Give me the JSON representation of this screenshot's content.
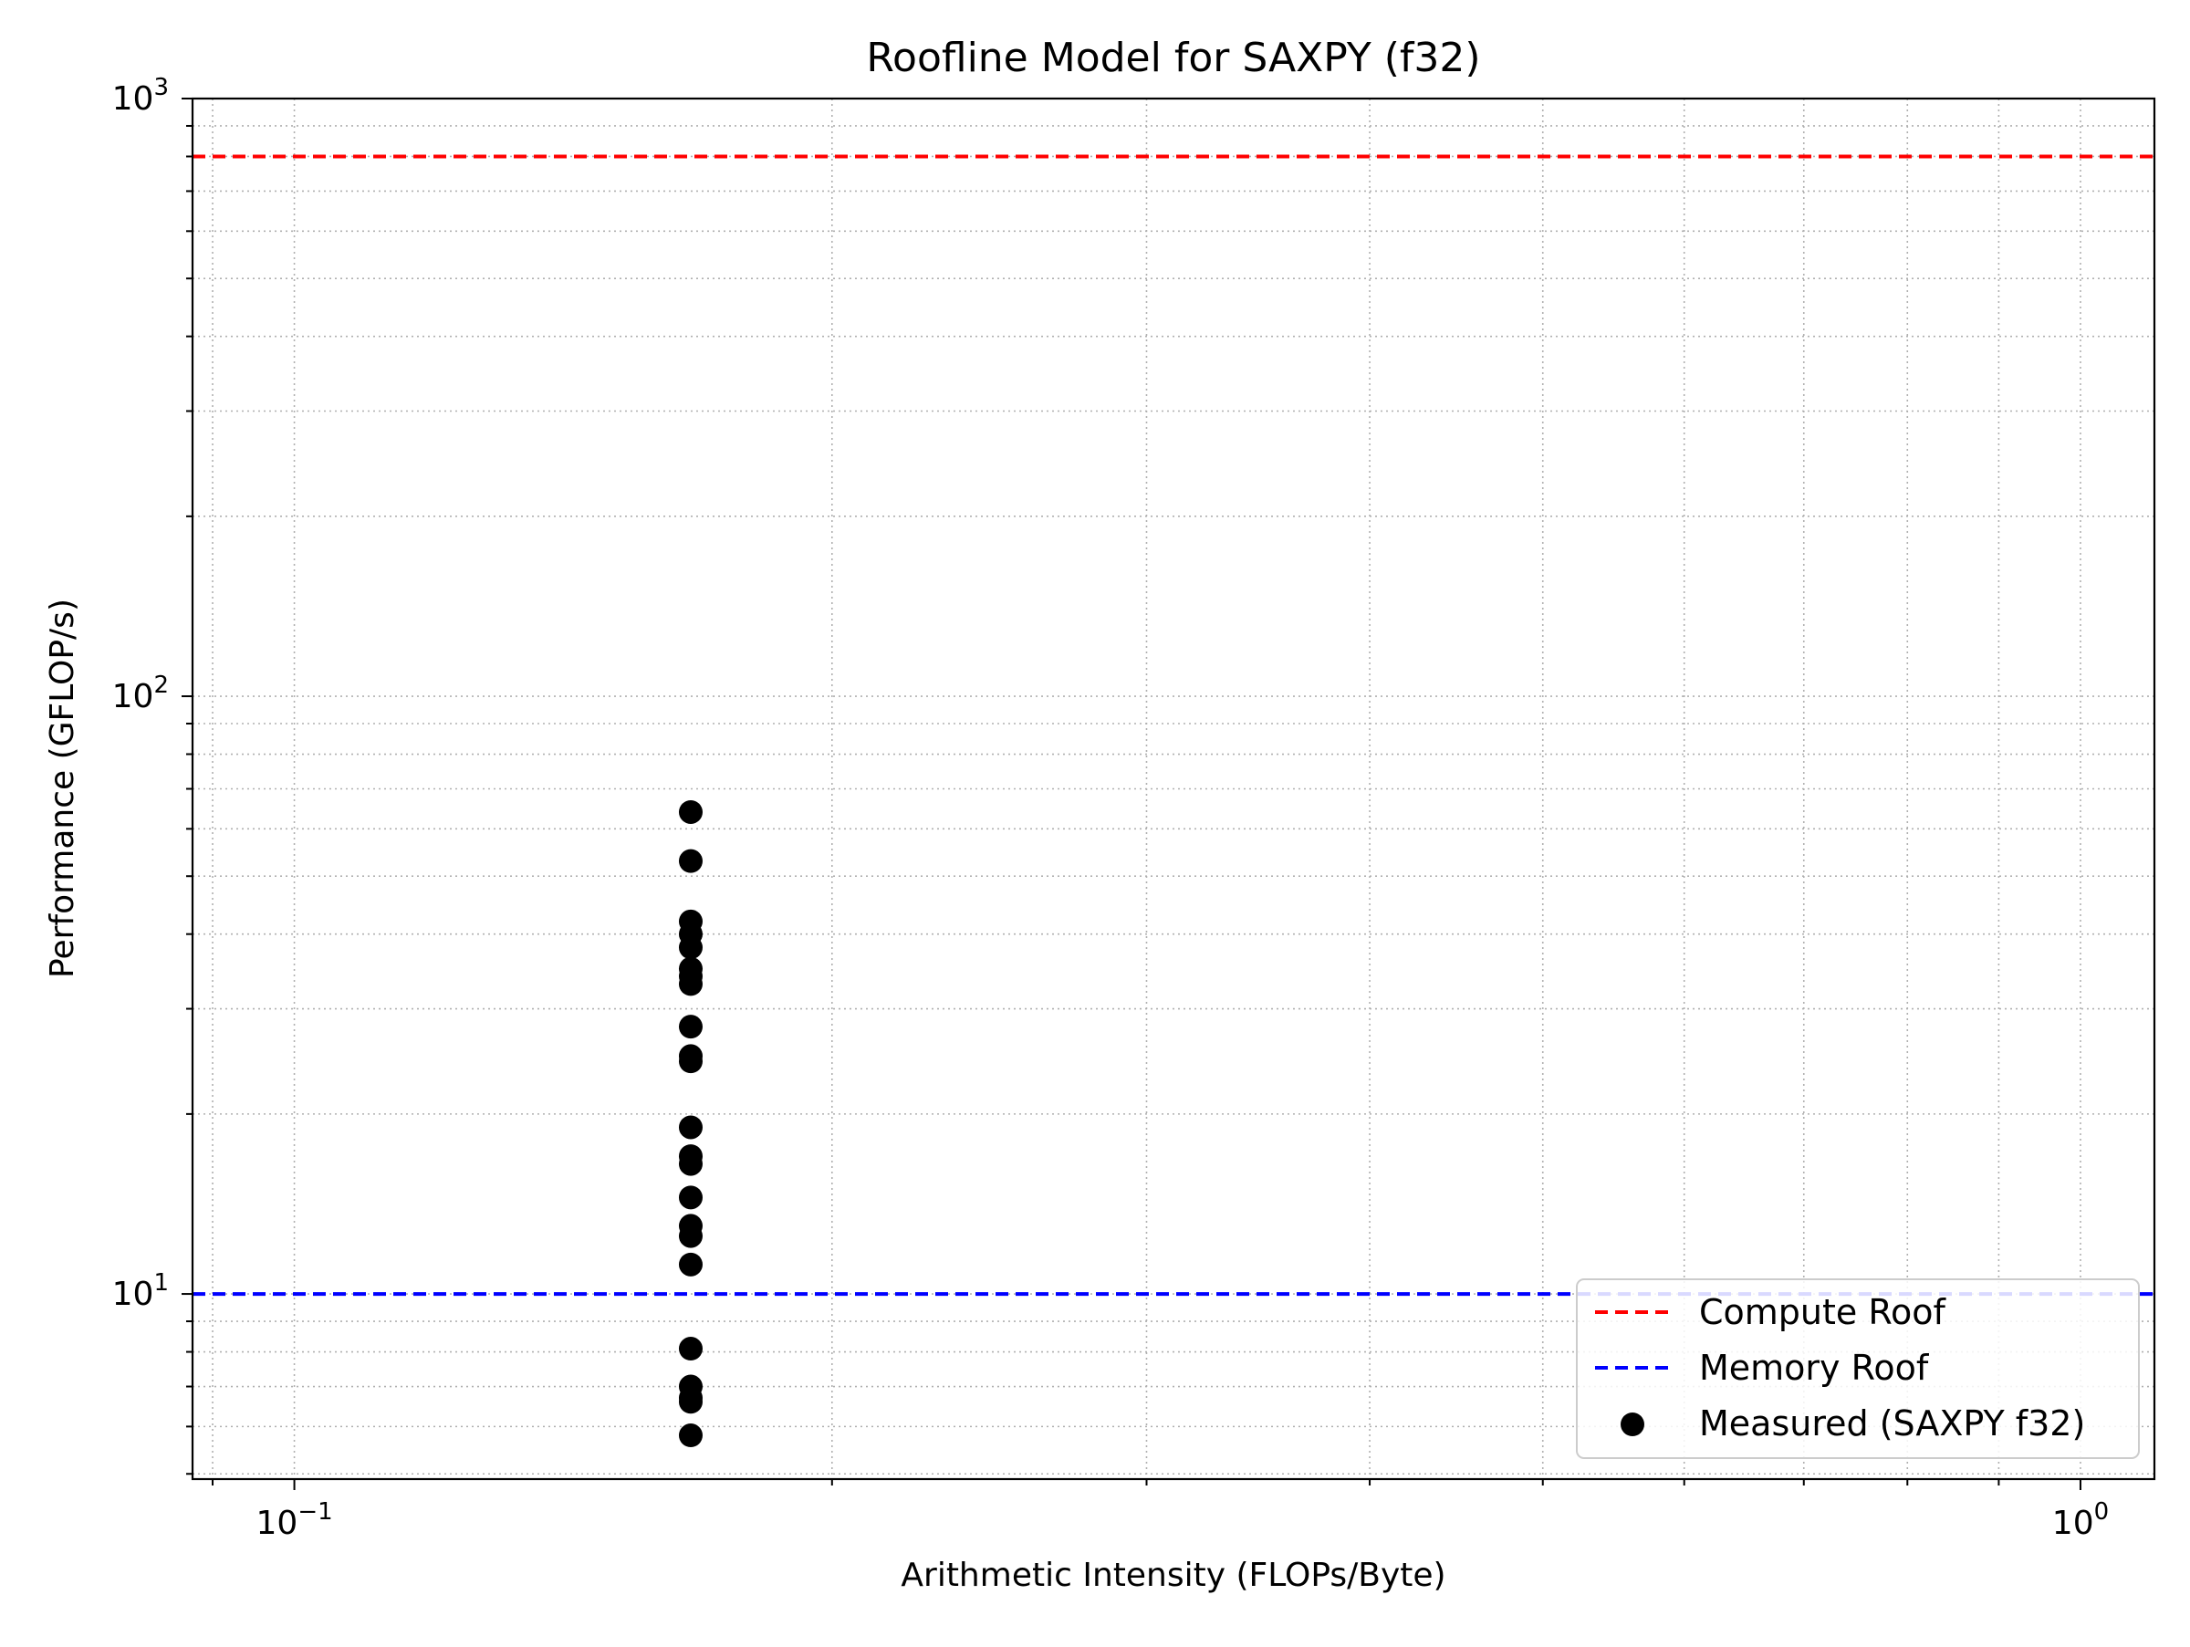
{
  "chart_data": {
    "type": "scatter",
    "title": "Roofline Model for SAXPY (f32)",
    "xlabel": "Arithmetic Intensity (FLOPs/Byte)",
    "ylabel": "Performance (GFLOP/s)",
    "xscale": "log",
    "yscale": "log",
    "xlim": [
      0.0877,
      1.1
    ],
    "ylim": [
      4.9,
      1000
    ],
    "grid": true,
    "grid_minor": true,
    "legend_position": "lower-right",
    "x_ticks": [
      {
        "value": 0.1,
        "base": "10",
        "exp": "−1"
      },
      {
        "value": 1,
        "base": "10",
        "exp": "0"
      }
    ],
    "y_ticks": [
      {
        "value": 10,
        "base": "10",
        "exp": "1"
      },
      {
        "value": 100,
        "base": "10",
        "exp": "2"
      },
      {
        "value": 1000,
        "base": "10",
        "exp": "3"
      }
    ],
    "lines": [
      {
        "name": "Compute Roof",
        "y": 800,
        "color": "#ff0000",
        "style": "dashed"
      },
      {
        "name": "Memory Roof",
        "y": 10,
        "color": "#0000ff",
        "style": "dashed"
      }
    ],
    "series": [
      {
        "name": "Measured (SAXPY f32)",
        "color": "#000000",
        "x": [
          0.1667,
          0.1667,
          0.1667,
          0.1667,
          0.1667,
          0.1667,
          0.1667,
          0.1667,
          0.1667,
          0.1667,
          0.1667,
          0.1667,
          0.1667,
          0.1667,
          0.1667,
          0.1667,
          0.1667,
          0.1667,
          0.1667,
          0.1667,
          0.1667,
          0.1667,
          0.1667
        ],
        "y": [
          64,
          53,
          42,
          40,
          38,
          35,
          34,
          33,
          28,
          25,
          24.5,
          19,
          17,
          16.5,
          14.5,
          13,
          12.5,
          11.2,
          8.1,
          7,
          6.7,
          6.6,
          5.8
        ]
      }
    ]
  }
}
